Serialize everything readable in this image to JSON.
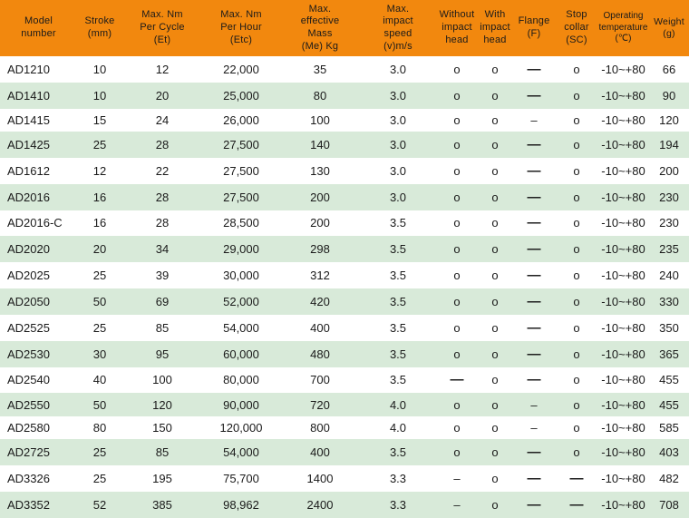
{
  "colors": {
    "header_bg": "#F2880E",
    "row_alt_bg": "#D8EAD9",
    "row_bg": "#FFFFFF",
    "text": "#1A1A1A"
  },
  "symbols": {
    "available": "o",
    "dash_thick": "—",
    "dash_thin": "–"
  },
  "table": {
    "columns": [
      {
        "key": "model",
        "label_lines": [
          "Model",
          "number"
        ]
      },
      {
        "key": "stroke",
        "label_lines": [
          "Stroke",
          "(mm)"
        ]
      },
      {
        "key": "et",
        "label_lines": [
          "Max. Nm",
          "Per Cycle",
          "(Et)"
        ]
      },
      {
        "key": "etc",
        "label_lines": [
          "Max. Nm",
          "Per Hour",
          "(Etc)"
        ]
      },
      {
        "key": "me",
        "label_lines": [
          "Max.",
          "effective",
          "Mass",
          "(Me) Kg"
        ]
      },
      {
        "key": "v",
        "label_lines": [
          "Max.",
          "impact",
          "speed",
          "(v)m/s"
        ]
      },
      {
        "key": "without",
        "label_lines": [
          "Without",
          "impact",
          "head"
        ]
      },
      {
        "key": "with",
        "label_lines": [
          "With",
          "impact",
          "head"
        ]
      },
      {
        "key": "flange",
        "label_lines": [
          "Flange",
          "(F)"
        ]
      },
      {
        "key": "sc",
        "label_lines": [
          "Stop",
          "collar",
          "(SC)"
        ]
      },
      {
        "key": "temp",
        "label_lines": [
          "Operating",
          "temperature",
          "(℃)"
        ]
      },
      {
        "key": "weight",
        "label_lines": [
          "Weight",
          "(g)"
        ]
      }
    ],
    "rows": [
      {
        "model": "AD1210",
        "stroke": "10",
        "et": "12",
        "etc": "22,000",
        "me": "35",
        "v": "3.0",
        "without": "o",
        "with": "o",
        "flange": "—",
        "sc": "o",
        "temp": "-10~+80",
        "weight": "66"
      },
      {
        "model": "AD1410",
        "stroke": "10",
        "et": "20",
        "etc": "25,000",
        "me": "80",
        "v": "3.0",
        "without": "o",
        "with": "o",
        "flange": "—",
        "sc": "o",
        "temp": "-10~+80",
        "weight": "90"
      },
      {
        "model": "AD1415",
        "stroke": "15",
        "et": "24",
        "etc": "26,000",
        "me": "100",
        "v": "3.0",
        "without": "o",
        "with": "o",
        "flange": "–",
        "sc": "o",
        "temp": "-10~+80",
        "weight": "120"
      },
      {
        "model": "AD1425",
        "stroke": "25",
        "et": "28",
        "etc": "27,500",
        "me": "140",
        "v": "3.0",
        "without": "o",
        "with": "o",
        "flange": "—",
        "sc": "o",
        "temp": "-10~+80",
        "weight": "194"
      },
      {
        "model": "AD1612",
        "stroke": "12",
        "et": "22",
        "etc": "27,500",
        "me": "130",
        "v": "3.0",
        "without": "o",
        "with": "o",
        "flange": "—",
        "sc": "o",
        "temp": "-10~+80",
        "weight": "200"
      },
      {
        "model": "AD2016",
        "stroke": "16",
        "et": "28",
        "etc": "27,500",
        "me": "200",
        "v": "3.0",
        "without": "o",
        "with": "o",
        "flange": "—",
        "sc": "o",
        "temp": "-10~+80",
        "weight": "230"
      },
      {
        "model": "AD2016-C",
        "stroke": "16",
        "et": "28",
        "etc": "28,500",
        "me": "200",
        "v": "3.5",
        "without": "o",
        "with": "o",
        "flange": "—",
        "sc": "o",
        "temp": "-10~+80",
        "weight": "230"
      },
      {
        "model": "AD2020",
        "stroke": "20",
        "et": "34",
        "etc": "29,000",
        "me": "298",
        "v": "3.5",
        "without": "o",
        "with": "o",
        "flange": "—",
        "sc": "o",
        "temp": "-10~+80",
        "weight": "235"
      },
      {
        "model": "AD2025",
        "stroke": "25",
        "et": "39",
        "etc": "30,000",
        "me": "312",
        "v": "3.5",
        "without": "o",
        "with": "o",
        "flange": "—",
        "sc": "o",
        "temp": "-10~+80",
        "weight": "240"
      },
      {
        "model": "AD2050",
        "stroke": "50",
        "et": "69",
        "etc": "52,000",
        "me": "420",
        "v": "3.5",
        "without": "o",
        "with": "o",
        "flange": "—",
        "sc": "o",
        "temp": "-10~+80",
        "weight": "330"
      },
      {
        "model": "AD2525",
        "stroke": "25",
        "et": "85",
        "etc": "54,000",
        "me": "400",
        "v": "3.5",
        "without": "o",
        "with": "o",
        "flange": "—",
        "sc": "o",
        "temp": "-10~+80",
        "weight": "350"
      },
      {
        "model": "AD2530",
        "stroke": "30",
        "et": "95",
        "etc": "60,000",
        "me": "480",
        "v": "3.5",
        "without": "o",
        "with": "o",
        "flange": "—",
        "sc": "o",
        "temp": "-10~+80",
        "weight": "365"
      },
      {
        "model": "AD2540",
        "stroke": "40",
        "et": "100",
        "etc": "80,000",
        "me": "700",
        "v": "3.5",
        "without": "—",
        "with": "o",
        "flange": "—",
        "sc": "o",
        "temp": "-10~+80",
        "weight": "455"
      },
      {
        "model": "AD2550",
        "stroke": "50",
        "et": "120",
        "etc": "90,000",
        "me": "720",
        "v": "4.0",
        "without": "o",
        "with": "o",
        "flange": "–",
        "sc": "o",
        "temp": "-10~+80",
        "weight": "455"
      },
      {
        "model": "AD2580",
        "stroke": "80",
        "et": "150",
        "etc": "120,000",
        "me": "800",
        "v": "4.0",
        "without": "o",
        "with": "o",
        "flange": "–",
        "sc": "o",
        "temp": "-10~+80",
        "weight": "585"
      },
      {
        "model": "AD2725",
        "stroke": "25",
        "et": "85",
        "etc": "54,000",
        "me": "400",
        "v": "3.5",
        "without": "o",
        "with": "o",
        "flange": "—",
        "sc": "o",
        "temp": "-10~+80",
        "weight": "403"
      },
      {
        "model": "AD3326",
        "stroke": "25",
        "et": "195",
        "etc": "75,700",
        "me": "1400",
        "v": "3.3",
        "without": "–",
        "with": "o",
        "flange": "—",
        "sc": "—",
        "temp": "-10~+80",
        "weight": "482"
      },
      {
        "model": "AD3352",
        "stroke": "52",
        "et": "385",
        "etc": "98,962",
        "me": "2400",
        "v": "3.3",
        "without": "–",
        "with": "o",
        "flange": "—",
        "sc": "—",
        "temp": "-10~+80",
        "weight": "708"
      }
    ]
  }
}
